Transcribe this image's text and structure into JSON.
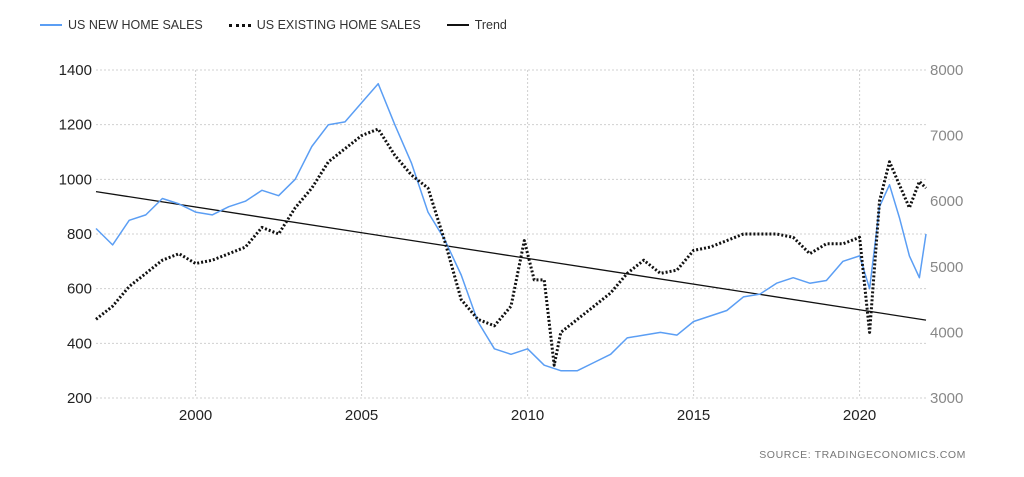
{
  "legend": {
    "new": "US NEW HOME SALES",
    "existing": "US EXISTING HOME SALES",
    "trend": "Trend"
  },
  "source": "SOURCE:   TRADINGECONOMICS.COM",
  "colors": {
    "new": "#5b9ef4",
    "existing": "#111111",
    "trend": "#111111",
    "grid": "#d0d0d0"
  },
  "chart_data": {
    "type": "line",
    "title": "",
    "xlabel": "",
    "ylabel": "",
    "xlim": [
      1997.0,
      2022.0
    ],
    "ylim_left": [
      200,
      1400
    ],
    "ylim_right": [
      3000,
      8000
    ],
    "x_ticks": [
      "2000",
      "2005",
      "2010",
      "2015",
      "2020"
    ],
    "y_ticks_left": [
      "200",
      "400",
      "600",
      "800",
      "1000",
      "1200",
      "1400"
    ],
    "y_ticks_right": [
      "3000",
      "4000",
      "5000",
      "6000",
      "7000",
      "8000"
    ],
    "grid": true,
    "legend_position": "top-left",
    "series": [
      {
        "name": "US NEW HOME SALES",
        "axis": "left",
        "style": "solid",
        "x": [
          1997.0,
          1997.5,
          1998.0,
          1998.5,
          1999.0,
          1999.5,
          2000.0,
          2000.5,
          2001.0,
          2001.5,
          2002.0,
          2002.5,
          2003.0,
          2003.5,
          2004.0,
          2004.5,
          2005.0,
          2005.5,
          2006.0,
          2006.5,
          2007.0,
          2007.5,
          2008.0,
          2008.5,
          2009.0,
          2009.5,
          2010.0,
          2010.5,
          2011.0,
          2011.5,
          2012.0,
          2012.5,
          2013.0,
          2013.5,
          2014.0,
          2014.5,
          2015.0,
          2015.5,
          2016.0,
          2016.5,
          2017.0,
          2017.5,
          2018.0,
          2018.5,
          2019.0,
          2019.5,
          2020.0,
          2020.3,
          2020.6,
          2020.9,
          2021.2,
          2021.5,
          2021.8,
          2022.0
        ],
        "y": [
          820,
          760,
          850,
          870,
          930,
          910,
          880,
          870,
          900,
          920,
          960,
          940,
          1000,
          1120,
          1200,
          1210,
          1280,
          1350,
          1200,
          1060,
          880,
          780,
          650,
          480,
          380,
          360,
          380,
          320,
          300,
          300,
          330,
          360,
          420,
          430,
          440,
          430,
          480,
          500,
          520,
          570,
          580,
          620,
          640,
          620,
          630,
          700,
          720,
          600,
          900,
          980,
          860,
          720,
          640,
          800
        ]
      },
      {
        "name": "US EXISTING HOME SALES",
        "axis": "right",
        "style": "dotted",
        "x": [
          1997.0,
          1997.5,
          1998.0,
          1998.5,
          1999.0,
          1999.5,
          2000.0,
          2000.5,
          2001.0,
          2001.5,
          2002.0,
          2002.5,
          2003.0,
          2003.5,
          2004.0,
          2004.5,
          2005.0,
          2005.5,
          2006.0,
          2006.5,
          2007.0,
          2007.5,
          2008.0,
          2008.5,
          2009.0,
          2009.5,
          2009.9,
          2010.2,
          2010.5,
          2010.8,
          2011.0,
          2011.5,
          2012.0,
          2012.5,
          2013.0,
          2013.5,
          2014.0,
          2014.5,
          2015.0,
          2015.5,
          2016.0,
          2016.5,
          2017.0,
          2017.5,
          2018.0,
          2018.5,
          2019.0,
          2019.5,
          2020.0,
          2020.3,
          2020.6,
          2020.9,
          2021.2,
          2021.5,
          2021.8,
          2022.0
        ],
        "y": [
          4200,
          4400,
          4700,
          4900,
          5100,
          5200,
          5050,
          5100,
          5200,
          5300,
          5600,
          5500,
          5900,
          6200,
          6600,
          6800,
          7000,
          7100,
          6700,
          6400,
          6200,
          5400,
          4500,
          4200,
          4100,
          4400,
          5400,
          4800,
          4800,
          3500,
          4000,
          4200,
          4400,
          4600,
          4900,
          5100,
          4900,
          4950,
          5250,
          5300,
          5400,
          5500,
          5500,
          5500,
          5450,
          5200,
          5350,
          5350,
          5450,
          4000,
          6000,
          6600,
          6250,
          5900,
          6300,
          6200
        ]
      },
      {
        "name": "Trend",
        "axis": "left",
        "style": "solid",
        "x": [
          1997.0,
          2022.0
        ],
        "y": [
          955,
          485
        ]
      }
    ]
  }
}
